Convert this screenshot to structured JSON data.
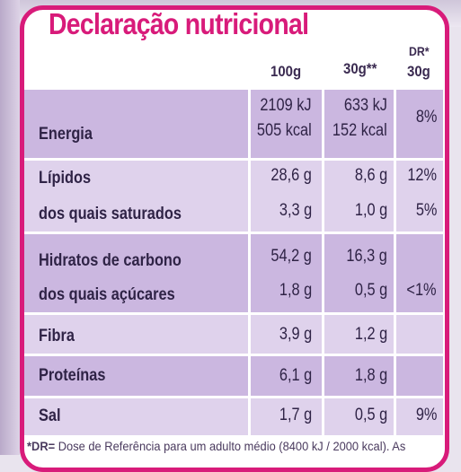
{
  "title": "Declaração nutricional",
  "columns": {
    "c100": "100g",
    "c30": "30g**",
    "dr_top": "DR*",
    "dr_bottom": "30g"
  },
  "rows": {
    "energia": {
      "label": "Energia",
      "kj100": "2109 kJ",
      "kcal100": "505 kcal",
      "kj30": "633 kJ",
      "kcal30": "152 kcal",
      "dr": "8%"
    },
    "lipidos": {
      "label": "Lípidos",
      "v100": "28,6 g",
      "v30": "8,6 g",
      "dr": "12%"
    },
    "saturados": {
      "label": "dos quais saturados",
      "v100": "3,3 g",
      "v30": "1,0 g",
      "dr": "5%"
    },
    "hidratos": {
      "label": "Hidratos de carbono",
      "v100": "54,2 g",
      "v30": "16,3 g"
    },
    "acucares": {
      "label": "dos quais açúcares",
      "v100": "1,8 g",
      "v30": "0,5 g",
      "dr": "<1%"
    },
    "fibra": {
      "label": "Fibra",
      "v100": "3,9 g",
      "v30": "1,2 g"
    },
    "proteinas": {
      "label": "Proteínas",
      "v100": "6,1 g",
      "v30": "1,8 g"
    },
    "sal": {
      "label": "Sal",
      "v100": "1,7 g",
      "v30": "0,5 g",
      "dr": "9%"
    }
  },
  "footnote": {
    "marker": "*DR=",
    "text": " Dose de Referência para um adulto médio (8400 kJ / 2000 kcal). As"
  },
  "colors": {
    "accent": "#d81b7a",
    "band_dark": "#cbb7e0",
    "band_light": "#dfd2ec",
    "text": "#2f2346"
  }
}
